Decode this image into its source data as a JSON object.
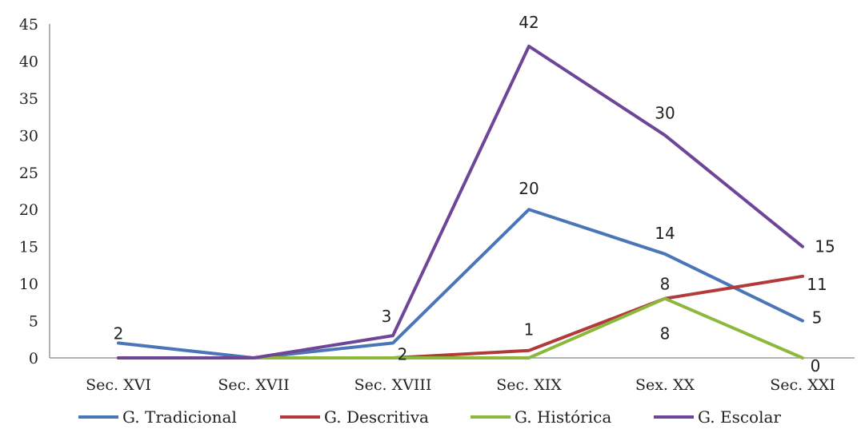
{
  "chart_data": {
    "type": "line",
    "categories": [
      "Sec. XVI",
      "Sec. XVII",
      "Sec. XVIII",
      "Sec. XIX",
      "Sex. XX",
      "Sec. XXI"
    ],
    "ylim": [
      0,
      45
    ],
    "yticks": [
      "0",
      "5",
      "10",
      "15",
      "20",
      "25",
      "30",
      "35",
      "40",
      "45"
    ],
    "grid": false,
    "legend_position": "bottom",
    "series": [
      {
        "name": "G. Tradicional",
        "color": "#4A76B8",
        "values": [
          2,
          0,
          2,
          20,
          14,
          5
        ],
        "labels": [
          "2",
          null,
          "2",
          "20",
          "14",
          "5"
        ]
      },
      {
        "name": "G. Descritiva",
        "color": "#B23A3A",
        "values": [
          0,
          0,
          0,
          1,
          8,
          11
        ],
        "labels": [
          null,
          null,
          null,
          "1",
          "8",
          "11"
        ]
      },
      {
        "name": "G. Histórica",
        "color": "#8DB83E",
        "values": [
          0,
          0,
          0,
          0,
          8,
          0
        ],
        "labels": [
          null,
          null,
          null,
          null,
          "8",
          "0"
        ]
      },
      {
        "name": "G. Escolar",
        "color": "#6E4597",
        "values": [
          0,
          0,
          3,
          42,
          30,
          15
        ],
        "labels": [
          null,
          null,
          "3",
          "42",
          "30",
          "15"
        ]
      }
    ]
  }
}
